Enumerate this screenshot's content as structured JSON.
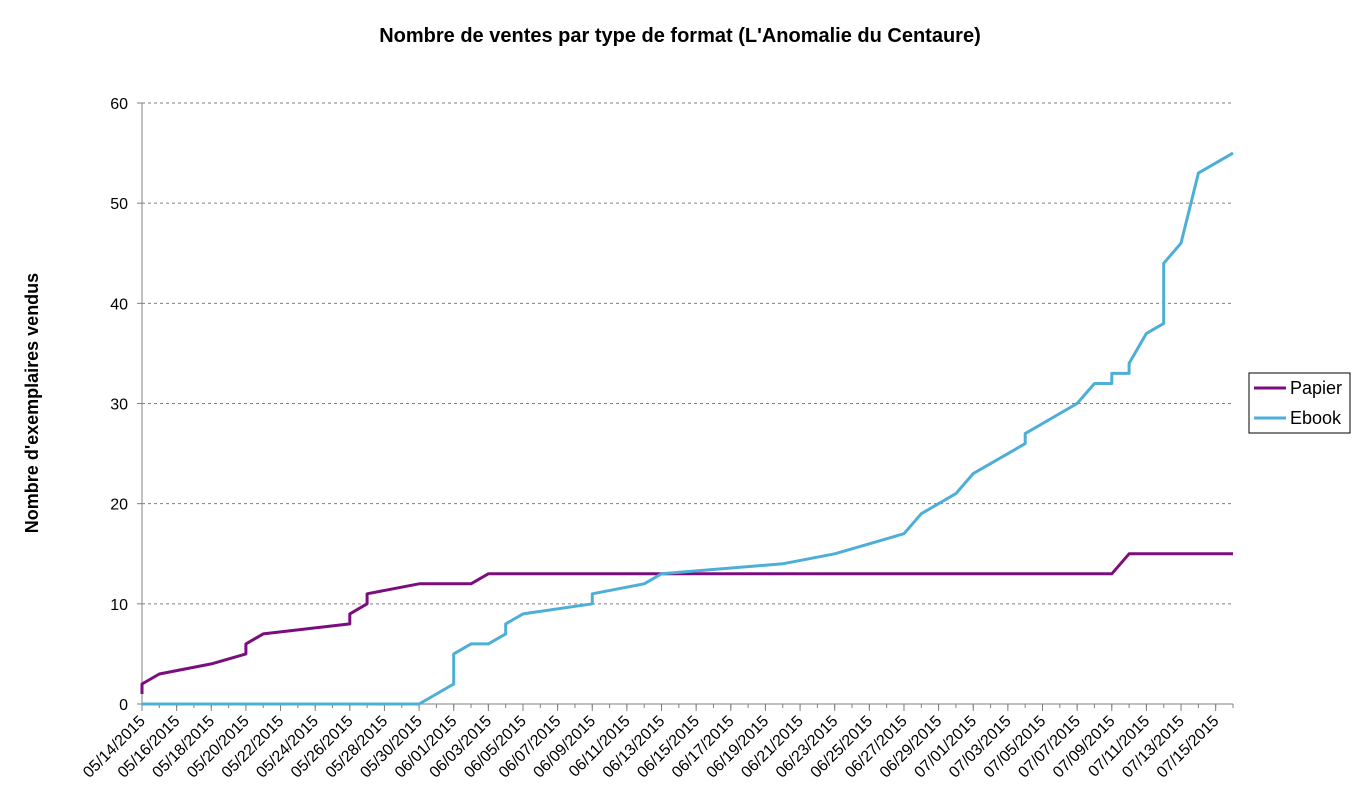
{
  "chart_data": {
    "type": "line",
    "title": "Nombre de ventes par type de format (L'Anomalie du Centaure)",
    "xlabel": "",
    "ylabel": "Nombre d'exemplaires vendus",
    "ylim": [
      0,
      60
    ],
    "yticks": [
      0,
      10,
      20,
      30,
      40,
      50,
      60
    ],
    "grid": true,
    "legend_position": "right",
    "x_start": "05/14/2015",
    "x_end": "07/16/2015",
    "x_ticks": [
      "05/14/2015",
      "05/16/2015",
      "05/18/2015",
      "05/20/2015",
      "05/22/2015",
      "05/24/2015",
      "05/26/2015",
      "05/28/2015",
      "05/30/2015",
      "06/01/2015",
      "06/03/2015",
      "06/05/2015",
      "06/07/2015",
      "06/09/2015",
      "06/11/2015",
      "06/13/2015",
      "06/15/2015",
      "06/17/2015",
      "06/19/2015",
      "06/21/2015",
      "06/23/2015",
      "06/25/2015",
      "06/27/2015",
      "06/29/2015",
      "07/01/2015",
      "07/03/2015",
      "07/05/2015",
      "07/07/2015",
      "07/09/2015",
      "07/11/2015",
      "07/13/2015",
      "07/15/2015"
    ],
    "series": [
      {
        "name": "Papier",
        "color": "#7B0E7E",
        "points": [
          [
            "05/14/2015",
            1
          ],
          [
            "05/14/2015",
            2
          ],
          [
            "05/15/2015",
            3
          ],
          [
            "05/18/2015",
            4
          ],
          [
            "05/20/2015",
            5
          ],
          [
            "05/20/2015",
            6
          ],
          [
            "05/21/2015",
            7
          ],
          [
            "05/26/2015",
            8
          ],
          [
            "05/26/2015",
            9
          ],
          [
            "05/27/2015",
            10
          ],
          [
            "05/27/2015",
            11
          ],
          [
            "05/30/2015",
            12
          ],
          [
            "06/02/2015",
            12
          ],
          [
            "06/03/2015",
            13
          ],
          [
            "07/09/2015",
            13
          ],
          [
            "07/10/2015",
            15
          ],
          [
            "07/16/2015",
            15
          ]
        ]
      },
      {
        "name": "Ebook",
        "color": "#4DAFD8",
        "points": [
          [
            "05/14/2015",
            0
          ],
          [
            "05/30/2015",
            0
          ],
          [
            "06/01/2015",
            2
          ],
          [
            "06/01/2015",
            5
          ],
          [
            "06/02/2015",
            6
          ],
          [
            "06/03/2015",
            6
          ],
          [
            "06/04/2015",
            7
          ],
          [
            "06/04/2015",
            8
          ],
          [
            "06/05/2015",
            9
          ],
          [
            "06/09/2015",
            10
          ],
          [
            "06/09/2015",
            11
          ],
          [
            "06/12/2015",
            12
          ],
          [
            "06/13/2015",
            13
          ],
          [
            "06/20/2015",
            14
          ],
          [
            "06/23/2015",
            15
          ],
          [
            "06/27/2015",
            17
          ],
          [
            "06/28/2015",
            19
          ],
          [
            "06/30/2015",
            21
          ],
          [
            "07/01/2015",
            23
          ],
          [
            "07/04/2015",
            26
          ],
          [
            "07/04/2015",
            27
          ],
          [
            "07/07/2015",
            30
          ],
          [
            "07/08/2015",
            32
          ],
          [
            "07/09/2015",
            32
          ],
          [
            "07/09/2015",
            33
          ],
          [
            "07/10/2015",
            33
          ],
          [
            "07/10/2015",
            34
          ],
          [
            "07/11/2015",
            37
          ],
          [
            "07/12/2015",
            38
          ],
          [
            "07/12/2015",
            44
          ],
          [
            "07/13/2015",
            46
          ],
          [
            "07/14/2015",
            53
          ],
          [
            "07/16/2015",
            55
          ]
        ]
      }
    ]
  }
}
